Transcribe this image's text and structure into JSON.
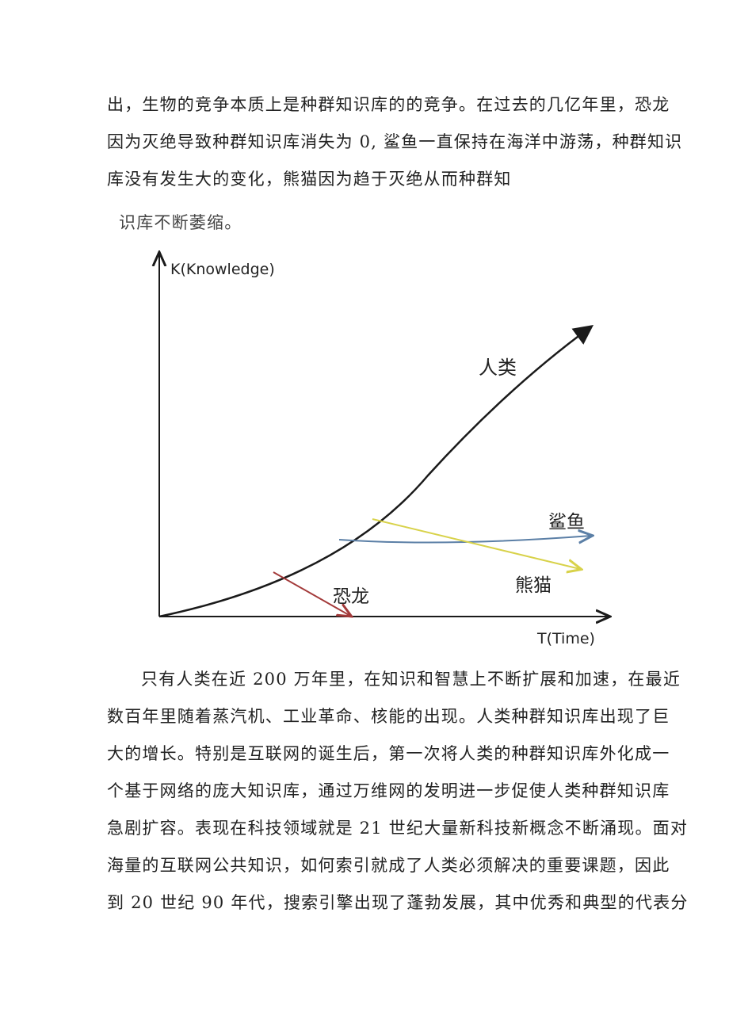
{
  "paragraph_top": [
    "出，生物的竞争本质上是种群知识库的的竞争。在过去的几亿年里，恐龙",
    "因为灭绝导致种群知识库消失为 0, 鲨鱼一直保持在海洋中游荡，种群知识",
    "库没有发生大的变化，熊猫因为趋于灭绝从而种群知",
    "识库不断萎缩。"
  ],
  "diagram": {
    "y_axis_label": "K(Knowledge)",
    "x_axis_label": "T(Time)",
    "curves": [
      {
        "label": "人类",
        "color": "#1a1a1a"
      },
      {
        "label": "鲨鱼",
        "color": "#5b7fa6"
      },
      {
        "label": "熊猫",
        "color": "#d8d24a"
      },
      {
        "label": "恐龙",
        "color": "#a33a3a"
      }
    ]
  },
  "paragraph_bottom": [
    "只有人类在近 200 万年里，在知识和智慧上不断扩展和加速，在最近",
    "数百年里随着蒸汽机、工业革命、核能的出现。人类种群知识库出现了巨",
    "大的增长。特别是互联网的诞生后，第一次将人类的种群知识库外化成一",
    "个基于网络的庞大知识库，通过万维网的发明进一步促使人类种群知识库",
    "急剧扩容。表现在科技领域就是 21 世纪大量新科技新概念不断涌现。面对",
    "海量的互联网公共知识，如何索引就成了人类必须解决的重要课题，因此",
    "到 20 世纪 90 年代，搜索引擎出现了蓬勃发展，其中优秀和典型的代表分"
  ]
}
